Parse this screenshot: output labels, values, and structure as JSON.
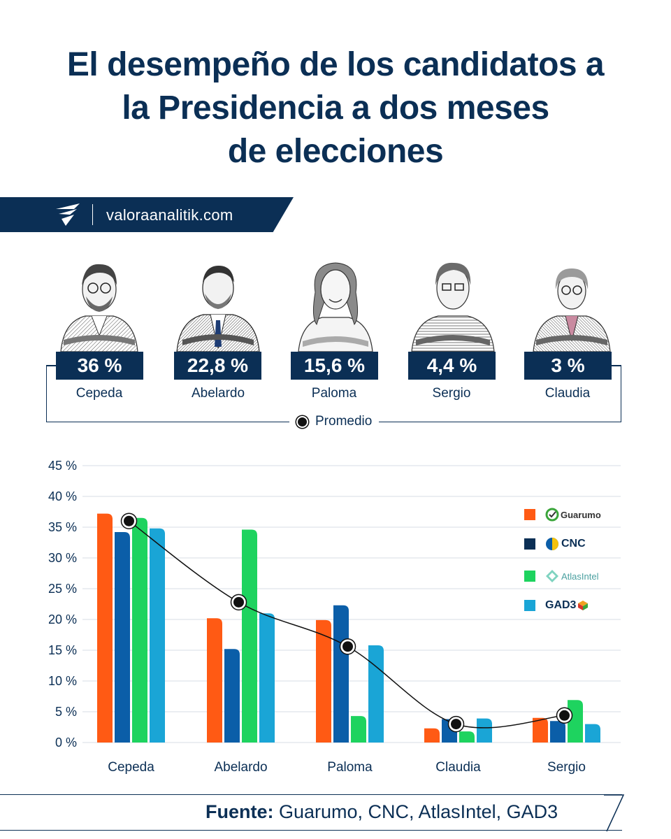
{
  "title_lines": [
    "El desempeño de los candidatos a",
    "la Presidencia a dos meses",
    "de elecciones"
  ],
  "banner": {
    "site": "valoraanalitik.com"
  },
  "candidates": [
    {
      "value": "36 %",
      "name": "Cepeda"
    },
    {
      "value": "22,8 %",
      "name": "Abelardo"
    },
    {
      "value": "15,6 %",
      "name": "Paloma"
    },
    {
      "value": "4,4 %",
      "name": "Sergio"
    },
    {
      "value": "3 %",
      "name": "Claudia"
    }
  ],
  "average_label": "Promedio",
  "colors": {
    "navy": "#0b2f55",
    "orange": "#ff5a14",
    "blue": "#0b5ea8",
    "green": "#1ed35f",
    "cyan": "#1aa5d6"
  },
  "chart_data": {
    "type": "bar",
    "categories": [
      "Cepeda",
      "Abelardo",
      "Paloma",
      "Claudia",
      "Sergio"
    ],
    "series": [
      {
        "name": "Guarumo",
        "color": "#ff5a14",
        "values": [
          37.2,
          20.2,
          19.9,
          2.3,
          4.0
        ]
      },
      {
        "name": "CNC",
        "color": "#0b5ea8",
        "values": [
          34.2,
          15.2,
          22.3,
          3.8,
          3.5
        ]
      },
      {
        "name": "AtlasIntel",
        "color": "#1ed35f",
        "values": [
          36.5,
          34.6,
          4.3,
          1.8,
          6.9
        ]
      },
      {
        "name": "GAD3",
        "color": "#1aa5d6",
        "values": [
          34.8,
          21.0,
          15.8,
          3.9,
          3.0
        ]
      }
    ],
    "average": {
      "name": "Promedio",
      "values": [
        36,
        22.8,
        15.6,
        3,
        4.4
      ]
    },
    "y_ticks": [
      "0 %",
      "5 %",
      "10 %",
      "15 %",
      "20 %",
      "25 %",
      "30 %",
      "35 %",
      "40 %",
      "45 %"
    ],
    "ylim": [
      0,
      45
    ],
    "grid": true,
    "legend_position": "top-right"
  },
  "footer": {
    "label": "Fuente:",
    "text": " Guarumo, CNC, AtlasIntel, GAD3"
  }
}
